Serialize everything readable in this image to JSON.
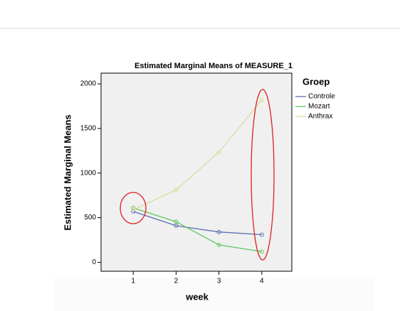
{
  "chart_data": {
    "type": "line",
    "title": "Estimated Marginal Means of MEASURE_1",
    "x_label": "week",
    "y_label": "Estimated Marginal Means",
    "legend_title": "Groep",
    "x": [
      1,
      2,
      3,
      4
    ],
    "series": [
      {
        "name": "Controle",
        "color": "#5b6db3",
        "values": [
          570,
          410,
          340,
          310
        ]
      },
      {
        "name": "Mozart",
        "color": "#5cc85c",
        "values": [
          610,
          455,
          195,
          120
        ]
      },
      {
        "name": "Anthrax",
        "color": "#dcdc9c",
        "values": [
          590,
          810,
          1235,
          1820
        ]
      }
    ],
    "xlim": [
      0.25,
      4.7
    ],
    "xticks": [
      1,
      2,
      3,
      4
    ],
    "ylim": [
      -100,
      2120
    ],
    "yticks": [
      0,
      500,
      1000,
      1500,
      2000
    ],
    "legend": "right",
    "grid": false
  }
}
